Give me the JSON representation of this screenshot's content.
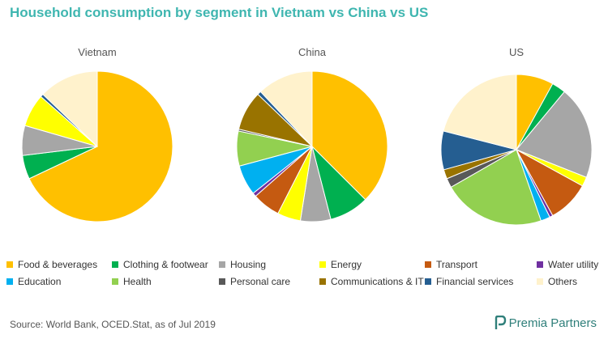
{
  "title": "Household consumption by segment in Vietnam vs China vs US",
  "source": "Source: World Bank, OCED.Stat, as of Jul 2019",
  "logo": {
    "text": "Premia Partners",
    "icon": "premia-logo-icon"
  },
  "chart_data": {
    "type": "pie",
    "categories": [
      "Food & beverages",
      "Clothing & footwear",
      "Housing",
      "Energy",
      "Transport",
      "Water utility",
      "Education",
      "Health",
      "Personal care",
      "Communications & IT",
      "Financial services",
      "Others"
    ],
    "colors": [
      "#FFC000",
      "#00B050",
      "#A6A6A6",
      "#FFFF00",
      "#C55A11",
      "#7030A0",
      "#00B0F0",
      "#92D050",
      "#595959",
      "#997300",
      "#255E91",
      "#FFF2CC"
    ],
    "legend_position": "bottom",
    "pies": [
      {
        "name": "Vietnam",
        "values": [
          53,
          4,
          5,
          5.5,
          0,
          0,
          0,
          0,
          0,
          0,
          0.5,
          10
        ]
      },
      {
        "name": "China",
        "values": [
          37.5,
          8.5,
          6.5,
          5,
          6,
          0.8,
          6.5,
          7.5,
          0.4,
          8.5,
          0.8,
          12
        ]
      },
      {
        "name": "US",
        "values": [
          8,
          3,
          20,
          2,
          9,
          0.7,
          2,
          22,
          2,
          2,
          8.3,
          21
        ]
      }
    ]
  }
}
